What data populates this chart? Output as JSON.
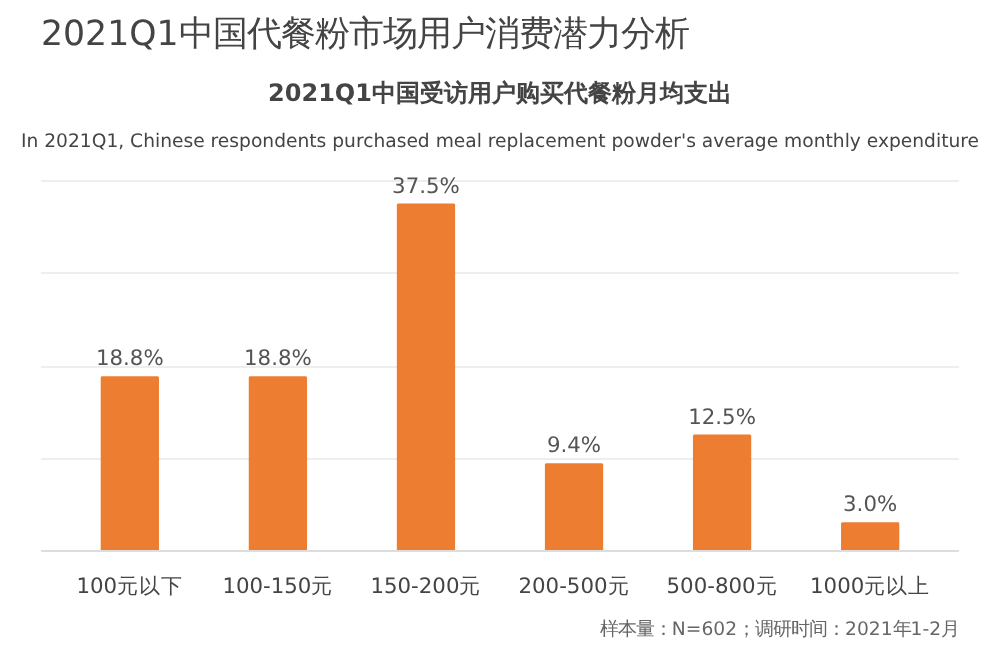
{
  "chart_data": {
    "type": "bar",
    "title": "2021Q1中国代餐粉市场用户消费潜力分析",
    "subtitle": "2021Q1中国受访用户购买代餐粉月均支出",
    "categories": [
      "100元以下",
      "100-150元",
      "150-200元",
      "200-500元",
      "500-800元",
      "1000元以上"
    ],
    "values": [
      18.8,
      18.8,
      37.5,
      9.4,
      12.5,
      3.0
    ],
    "value_labels": [
      "18.8%",
      "18.8%",
      "37.5%",
      "9.4%",
      "12.5%",
      "3.0%"
    ],
    "color": "#ed7d31",
    "tick_labels": "x",
    "grid": "y",
    "annotations": [
      "In 2021Q1, Chinese respondents purchased meal replacement powder's average monthly expenditure",
      "样本量：N=602；调研时间：2021年1-2月"
    ]
  }
}
